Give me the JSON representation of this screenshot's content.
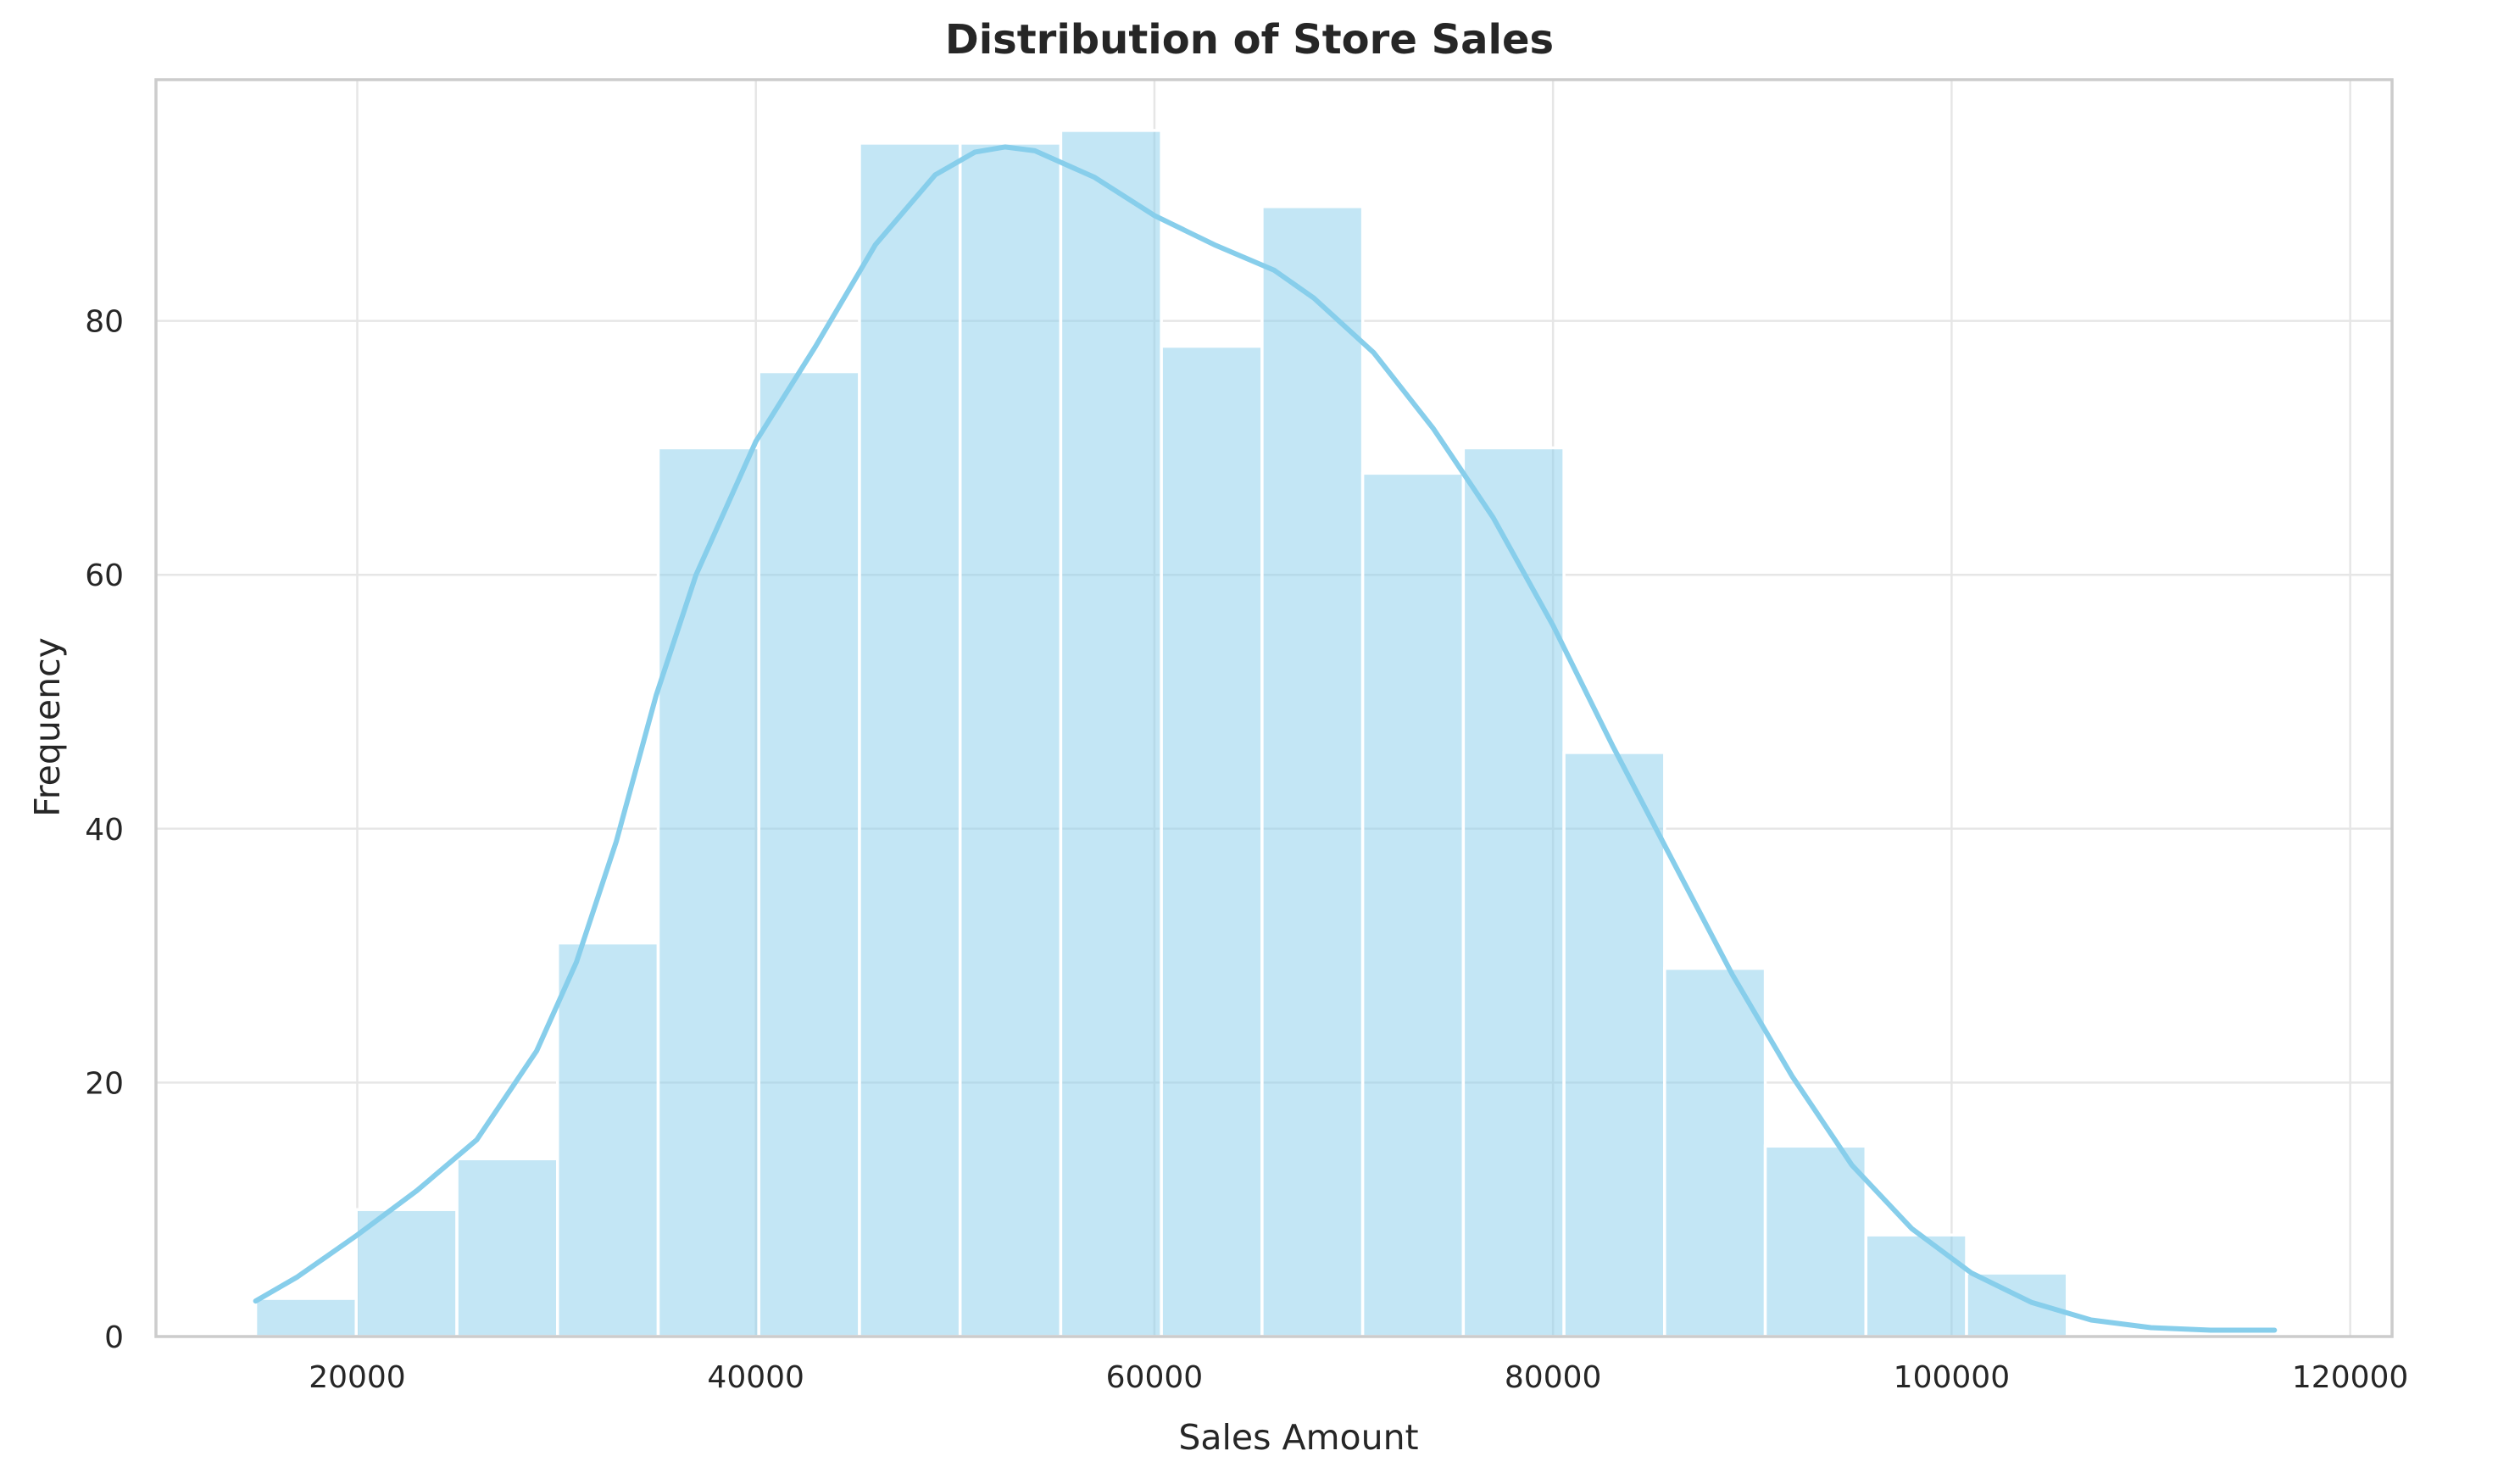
{
  "chart_data": {
    "type": "bar",
    "title": "Distribution of Store Sales",
    "xlabel": "Sales Amount",
    "ylabel": "Frequency",
    "xlim": [
      9900,
      122100
    ],
    "ylim": [
      0,
      99
    ],
    "x_ticks": [
      20000,
      40000,
      60000,
      80000,
      100000,
      120000
    ],
    "y_ticks": [
      0,
      20,
      40,
      60,
      80
    ],
    "grid": true,
    "colors": {
      "bar": "#87ceeb",
      "kde": "#87ceeb",
      "frame": "#cccccc",
      "grid": "#e6e6e6",
      "text": "#262626"
    },
    "bins": [
      {
        "x0": 14900,
        "x1": 19950,
        "count": 3
      },
      {
        "x0": 19950,
        "x1": 25000,
        "count": 10
      },
      {
        "x0": 25000,
        "x1": 30050,
        "count": 14
      },
      {
        "x0": 30050,
        "x1": 35100,
        "count": 31
      },
      {
        "x0": 35100,
        "x1": 40150,
        "count": 70
      },
      {
        "x0": 40150,
        "x1": 45200,
        "count": 76
      },
      {
        "x0": 45200,
        "x1": 50250,
        "count": 94
      },
      {
        "x0": 50250,
        "x1": 55300,
        "count": 94
      },
      {
        "x0": 55300,
        "x1": 60350,
        "count": 95
      },
      {
        "x0": 60350,
        "x1": 65400,
        "count": 78
      },
      {
        "x0": 65400,
        "x1": 70450,
        "count": 89
      },
      {
        "x0": 70450,
        "x1": 75500,
        "count": 68
      },
      {
        "x0": 75500,
        "x1": 80550,
        "count": 70
      },
      {
        "x0": 80550,
        "x1": 85600,
        "count": 46
      },
      {
        "x0": 85600,
        "x1": 90650,
        "count": 29
      },
      {
        "x0": 90650,
        "x1": 95700,
        "count": 15
      },
      {
        "x0": 95700,
        "x1": 100750,
        "count": 8
      },
      {
        "x0": 100750,
        "x1": 105800,
        "count": 5
      }
    ],
    "kde": {
      "x": [
        14900,
        17000,
        20000,
        23000,
        26000,
        29000,
        31000,
        33000,
        35000,
        37000,
        40000,
        43000,
        46000,
        49000,
        51000,
        52500,
        54000,
        57000,
        60000,
        63000,
        66000,
        68000,
        71000,
        74000,
        77000,
        80000,
        83000,
        86000,
        89000,
        92000,
        95000,
        98000,
        101000,
        104000,
        107000,
        110000,
        113000,
        116200
      ],
      "y": [
        2.8,
        4.7,
        8.0,
        11.5,
        15.5,
        22.5,
        29.5,
        39.0,
        50.5,
        60.0,
        70.5,
        78.0,
        86.0,
        91.5,
        93.3,
        93.7,
        93.4,
        91.3,
        88.3,
        86.0,
        84.0,
        81.8,
        77.5,
        71.5,
        64.5,
        56.0,
        46.5,
        37.5,
        28.5,
        20.5,
        13.5,
        8.5,
        5.0,
        2.7,
        1.3,
        0.7,
        0.5,
        0.5
      ]
    }
  }
}
